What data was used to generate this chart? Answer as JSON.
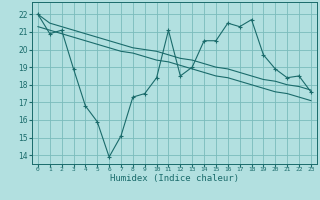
{
  "xlabel": "Humidex (Indice chaleur)",
  "background_color": "#b2e0e0",
  "grid_color": "#7bbcbc",
  "line_color": "#1a6b6b",
  "xlim": [
    -0.5,
    23.5
  ],
  "ylim": [
    13.5,
    22.7
  ],
  "yticks": [
    14,
    15,
    16,
    17,
    18,
    19,
    20,
    21,
    22
  ],
  "xticks": [
    0,
    1,
    2,
    3,
    4,
    5,
    6,
    7,
    8,
    9,
    10,
    11,
    12,
    13,
    14,
    15,
    16,
    17,
    18,
    19,
    20,
    21,
    22,
    23
  ],
  "series1_x": [
    0,
    1,
    2,
    3,
    4,
    5,
    6,
    7,
    8,
    9,
    10,
    11,
    12,
    13,
    14,
    15,
    16,
    17,
    18,
    19,
    20,
    21,
    22,
    23
  ],
  "series1_y": [
    22.0,
    20.9,
    21.1,
    18.9,
    16.8,
    15.9,
    13.9,
    15.1,
    17.3,
    17.5,
    18.4,
    21.1,
    18.5,
    19.0,
    20.5,
    20.5,
    21.5,
    21.3,
    21.7,
    19.7,
    18.9,
    18.4,
    18.5,
    17.6
  ],
  "series2_x": [
    0,
    1,
    2,
    3,
    4,
    5,
    6,
    7,
    8,
    9,
    10,
    11,
    12,
    13,
    14,
    15,
    16,
    17,
    18,
    19,
    20,
    21,
    22,
    23
  ],
  "series2_y": [
    22.0,
    21.5,
    21.3,
    21.1,
    20.9,
    20.7,
    20.5,
    20.3,
    20.1,
    20.0,
    19.9,
    19.7,
    19.5,
    19.4,
    19.2,
    19.0,
    18.9,
    18.7,
    18.5,
    18.3,
    18.2,
    18.0,
    17.9,
    17.7
  ],
  "series3_x": [
    0,
    1,
    2,
    3,
    4,
    5,
    6,
    7,
    8,
    9,
    10,
    11,
    12,
    13,
    14,
    15,
    16,
    17,
    18,
    19,
    20,
    21,
    22,
    23
  ],
  "series3_y": [
    21.3,
    21.1,
    20.9,
    20.7,
    20.5,
    20.3,
    20.1,
    19.9,
    19.8,
    19.6,
    19.4,
    19.3,
    19.1,
    18.9,
    18.7,
    18.5,
    18.4,
    18.2,
    18.0,
    17.8,
    17.6,
    17.5,
    17.3,
    17.1
  ]
}
